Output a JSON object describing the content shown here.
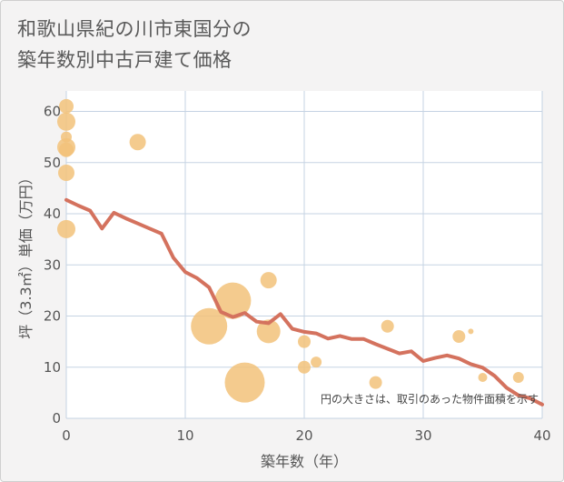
{
  "title_lines": [
    "和歌山県紀の川市東国分の",
    "築年数別中古戸建て価格"
  ],
  "chart_data": {
    "type": "scatter",
    "xlabel": "築年数（年）",
    "ylabel": "坪（3.3㎡）単価（万円）",
    "xlim": [
      0,
      40
    ],
    "ylim": [
      0,
      64
    ],
    "x_ticks": [
      0,
      10,
      20,
      30,
      40
    ],
    "y_ticks": [
      0,
      10,
      20,
      30,
      40,
      50,
      60
    ],
    "grid": true,
    "note": "円の大きさは、取引のあった物件面積を示す",
    "colors": {
      "bubble": "#f2c27a",
      "line": "#d4725e",
      "grid": "#c5d3e3",
      "background": "#ffffff"
    },
    "bubbles": [
      {
        "x": 0,
        "y": 61,
        "size": 8
      },
      {
        "x": 0,
        "y": 58,
        "size": 10
      },
      {
        "x": 0,
        "y": 55,
        "size": 6
      },
      {
        "x": 0,
        "y": 53,
        "size": 10
      },
      {
        "x": 0,
        "y": 52.5,
        "size": 8
      },
      {
        "x": 0,
        "y": 48,
        "size": 9
      },
      {
        "x": 0,
        "y": 37,
        "size": 10
      },
      {
        "x": 6,
        "y": 54,
        "size": 9
      },
      {
        "x": 12,
        "y": 18,
        "size": 20
      },
      {
        "x": 14,
        "y": 23,
        "size": 20
      },
      {
        "x": 15,
        "y": 7,
        "size": 22
      },
      {
        "x": 17,
        "y": 27,
        "size": 9
      },
      {
        "x": 17,
        "y": 17,
        "size": 13
      },
      {
        "x": 20,
        "y": 15,
        "size": 7
      },
      {
        "x": 20,
        "y": 10,
        "size": 7
      },
      {
        "x": 21,
        "y": 11,
        "size": 6
      },
      {
        "x": 26,
        "y": 7,
        "size": 7
      },
      {
        "x": 27,
        "y": 18,
        "size": 7
      },
      {
        "x": 33,
        "y": 16,
        "size": 7
      },
      {
        "x": 34,
        "y": 17,
        "size": 3
      },
      {
        "x": 35,
        "y": 8,
        "size": 5
      },
      {
        "x": 38,
        "y": 8,
        "size": 6
      }
    ],
    "series": [
      {
        "x": [
          0,
          1,
          2,
          3,
          4,
          5,
          6,
          7,
          8,
          9,
          10,
          11,
          12,
          13,
          14,
          15,
          16,
          17,
          18,
          19,
          20,
          21,
          22,
          23,
          24,
          25,
          26,
          27,
          28,
          29,
          30,
          31,
          32,
          33,
          34,
          35,
          36,
          37,
          38,
          39,
          40
        ],
        "values": [
          42.7,
          41.6,
          40.6,
          37.1,
          40.2,
          39.1,
          38.1,
          37.1,
          36.1,
          31.4,
          28.6,
          27.4,
          25.6,
          20.8,
          19.8,
          20.6,
          18.9,
          18.6,
          20.4,
          17.5,
          16.9,
          16.6,
          15.6,
          16.1,
          15.5,
          15.5,
          14.5,
          13.6,
          12.7,
          13.1,
          11.2,
          11.8,
          12.3,
          11.7,
          10.6,
          9.9,
          8.3,
          6.0,
          4.5,
          3.9,
          2.7
        ]
      }
    ]
  }
}
